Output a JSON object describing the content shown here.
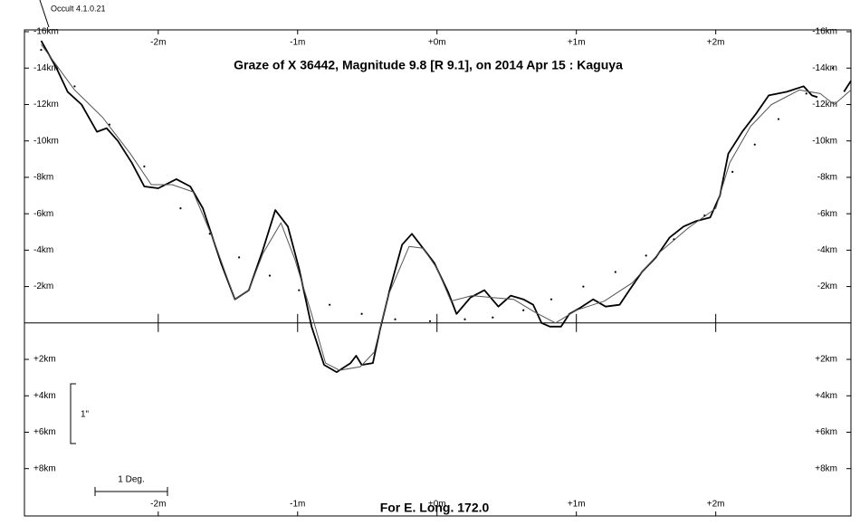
{
  "chart_data": {
    "type": "line",
    "title": "Graze of  X 36442,  Magnitude 9.8 [R 9.1],  on 2014 Apr 15  :  Kaguya",
    "footer": "For E. Long. 172.0",
    "version": "Occult 4.1.0.21",
    "scale_vertical": "1\"",
    "scale_horizontal": "1 Deg.",
    "xlim": [
      -2.96,
      2.97
    ],
    "ylim": [
      10.6,
      -16.1
    ],
    "xticks": [
      {
        "value": -2,
        "label": "-2m"
      },
      {
        "value": -1,
        "label": "-1m"
      },
      {
        "value": 0,
        "label": "+0m"
      },
      {
        "value": 1,
        "label": "+1m"
      },
      {
        "value": 2,
        "label": "+2m"
      }
    ],
    "yticks": [
      {
        "value": -16,
        "label": "-16km"
      },
      {
        "value": -14,
        "label": "-14km"
      },
      {
        "value": -12,
        "label": "-12km"
      },
      {
        "value": -10,
        "label": "-10km"
      },
      {
        "value": -8,
        "label": "-8km"
      },
      {
        "value": -6,
        "label": "-6km"
      },
      {
        "value": -4,
        "label": "-4km"
      },
      {
        "value": -2,
        "label": "-2km"
      },
      {
        "value": 2,
        "label": "+2km"
      },
      {
        "value": 4,
        "label": "+4km"
      },
      {
        "value": 6,
        "label": "+6km"
      },
      {
        "value": 8,
        "label": "+8km"
      }
    ],
    "series": [
      {
        "color": "#000000",
        "style": "line",
        "width": 1.8,
        "x": [
          -2.84,
          -2.73,
          -2.65,
          -2.55,
          -2.44,
          -2.37,
          -2.29,
          -2.19,
          -2.1,
          -2.0,
          -1.87,
          -1.77,
          -1.68,
          -1.55,
          -1.45,
          -1.35,
          -1.25,
          -1.16,
          -1.07,
          -0.99,
          -0.9,
          -0.81,
          -0.72,
          -0.62,
          -0.58,
          -0.54,
          -0.46,
          -0.41,
          -0.34,
          -0.25,
          -0.18,
          -0.12,
          -0.02,
          0.08,
          0.14,
          0.24,
          0.34,
          0.44,
          0.53,
          0.62,
          0.69,
          0.75,
          0.81,
          0.89,
          0.95,
          1.02,
          1.12,
          1.21,
          1.31,
          1.38,
          1.47,
          1.57,
          1.67,
          1.77,
          1.86,
          1.96,
          2.03,
          2.09,
          2.19,
          2.29,
          2.38,
          2.51,
          2.63,
          2.69,
          2.73,
          2.8,
          2.92,
          2.97
        ],
        "values": [
          -15.5,
          -14.0,
          -12.7,
          -12.0,
          -10.5,
          -10.7,
          -10.0,
          -8.8,
          -7.5,
          -7.4,
          -7.9,
          -7.5,
          -6.3,
          -3.3,
          -1.3,
          -1.8,
          -4.0,
          -6.2,
          -5.3,
          -3.0,
          0.2,
          2.3,
          2.7,
          2.2,
          1.8,
          2.3,
          2.2,
          0.4,
          -1.8,
          -4.3,
          -4.9,
          -4.3,
          -3.3,
          -1.7,
          -0.5,
          -1.4,
          -1.8,
          -0.9,
          -1.5,
          -1.3,
          -1.0,
          0.0,
          0.2,
          0.2,
          -0.5,
          -0.8,
          -1.3,
          -0.9,
          -1.0,
          -1.8,
          -2.8,
          -3.6,
          -4.7,
          -5.3,
          -5.6,
          -5.8,
          -7.0,
          -9.3,
          -10.5,
          -11.5,
          -12.5,
          -12.7,
          -13.0,
          -12.5,
          -12.4,
          null,
          -12.7,
          -13.3
        ]
      },
      {
        "color": "#555555",
        "style": "line",
        "width": 1,
        "x": [
          -2.84,
          -2.6,
          -2.4,
          -2.2,
          -2.05,
          -1.9,
          -1.75,
          -1.6,
          -1.45,
          -1.35,
          -1.25,
          -1.12,
          -1.02,
          -0.9,
          -0.8,
          -0.7,
          -0.55,
          -0.45,
          -0.35,
          -0.2,
          -0.1,
          0.0,
          0.1,
          0.25,
          0.4,
          0.55,
          0.7,
          0.85,
          1.0,
          1.2,
          1.4,
          1.6,
          1.8,
          2.0,
          2.1,
          2.25,
          2.4,
          2.6,
          2.75,
          2.85,
          2.97
        ],
        "values": [
          -15.3,
          -12.8,
          -11.3,
          -9.3,
          -7.6,
          -7.6,
          -7.2,
          -4.5,
          -1.3,
          -1.8,
          -3.8,
          -5.5,
          -3.5,
          -0.5,
          2.2,
          2.6,
          2.4,
          1.6,
          -1.5,
          -4.2,
          -4.1,
          -3.0,
          -1.2,
          -1.5,
          -1.4,
          -1.3,
          -0.6,
          0.0,
          -0.7,
          -1.2,
          -2.2,
          -3.9,
          -5.2,
          -6.3,
          -8.8,
          -10.8,
          -12.0,
          -12.8,
          -12.6,
          -12.0,
          -12.8
        ]
      },
      {
        "color": "#000000",
        "style": "dots",
        "x": [
          -2.84,
          -2.6,
          -2.35,
          -2.1,
          -1.84,
          -1.63,
          -1.42,
          -1.2,
          -0.99,
          -0.77,
          -0.54,
          -0.3,
          -0.05,
          0.2,
          0.4,
          0.62,
          0.82,
          1.05,
          1.28,
          1.5,
          1.7,
          1.92,
          2.12,
          2.28,
          2.45,
          2.65,
          2.84
        ],
        "values": [
          -15.0,
          -13.0,
          -10.9,
          -8.6,
          -6.3,
          -4.9,
          -3.6,
          -2.6,
          -1.8,
          -1.0,
          -0.5,
          -0.2,
          -0.1,
          -0.2,
          -0.3,
          -0.7,
          -1.3,
          -2.0,
          -2.8,
          -3.7,
          -4.6,
          -5.9,
          -8.3,
          -9.8,
          -11.2,
          -12.6,
          -14.0
        ]
      }
    ]
  }
}
